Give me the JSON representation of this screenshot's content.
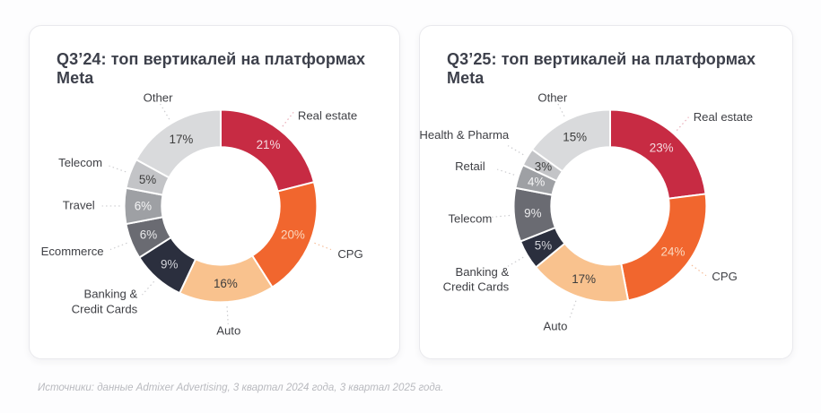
{
  "page": {
    "background": "#fdfdfe"
  },
  "footer": {
    "source_text": "Источники: данные Admixer Advertising, 3 квартал 2024 года, 3 квартал 2025 года."
  },
  "chart_data": [
    {
      "type": "pie",
      "subtype": "donut",
      "title": "Q3’24: топ вертикалей на платформах Meta",
      "legend_position": "none",
      "labels_position": "outside",
      "start_angle": "top",
      "direction": "clockwise",
      "slices": [
        {
          "label": "Real estate",
          "value": 21,
          "pct_label": "21%",
          "color": "#c72b43",
          "pct_color": "#f4d9de",
          "leader_color": "#e9abb6"
        },
        {
          "label": "CPG",
          "value": 20,
          "pct_label": "20%",
          "color": "#f1662e",
          "pct_color": "#fbd8bf",
          "leader_color": "#f6bd99"
        },
        {
          "label": "Auto",
          "value": 16,
          "pct_label": "16%",
          "color": "#f9c28e",
          "pct_color": "#3d3d3d",
          "leader_color": "#cccccf"
        },
        {
          "label": "Banking &\nCredit Cards",
          "value": 9,
          "pct_label": "9%",
          "color": "#2b2f3e",
          "pct_color": "#d2d3d9",
          "leader_color": "#cccccf"
        },
        {
          "label": "Ecommerce",
          "value": 6,
          "pct_label": "6%",
          "color": "#6a6b72",
          "pct_color": "#e9e9eb",
          "leader_color": "#cccccf"
        },
        {
          "label": "Travel",
          "value": 6,
          "pct_label": "6%",
          "color": "#9ea0a4",
          "pct_color": "#f4f4f5",
          "leader_color": "#cccccf"
        },
        {
          "label": "Telecom",
          "value": 5,
          "pct_label": "5%",
          "color": "#c3c4c7",
          "pct_color": "#3d3d3d",
          "leader_color": "#cccccf"
        },
        {
          "label": "Other",
          "value": 17,
          "pct_label": "17%",
          "color": "#d9dadc",
          "pct_color": "#3d3d3d",
          "leader_color": "#cccccf"
        }
      ]
    },
    {
      "type": "pie",
      "subtype": "donut",
      "title": "Q3’25: топ вертикалей на платформах Meta",
      "legend_position": "none",
      "labels_position": "outside",
      "start_angle": "top",
      "direction": "clockwise",
      "slices": [
        {
          "label": "Real estate",
          "value": 23,
          "pct_label": "23%",
          "color": "#c72b43",
          "pct_color": "#f4d9de",
          "leader_color": "#e9abb6"
        },
        {
          "label": "CPG",
          "value": 24,
          "pct_label": "24%",
          "color": "#f1662e",
          "pct_color": "#fbd8bf",
          "leader_color": "#f6bd99"
        },
        {
          "label": "Auto",
          "value": 17,
          "pct_label": "17%",
          "color": "#f9c28e",
          "pct_color": "#3d3d3d",
          "leader_color": "#cccccf"
        },
        {
          "label": "Banking &\nCredit Cards",
          "value": 5,
          "pct_label": "5%",
          "color": "#2b2f3e",
          "pct_color": "#d2d3d9",
          "leader_color": "#cccccf"
        },
        {
          "label": "Telecom",
          "value": 9,
          "pct_label": "9%",
          "color": "#6a6b72",
          "pct_color": "#e9e9eb",
          "leader_color": "#cccccf"
        },
        {
          "label": "Retail",
          "value": 4,
          "pct_label": "4%",
          "color": "#9ea0a4",
          "pct_color": "#f4f4f5",
          "leader_color": "#cccccf"
        },
        {
          "label": "Health & Pharma",
          "value": 3,
          "pct_label": "3%",
          "color": "#c3c4c7",
          "pct_color": "#3d3d3d",
          "leader_color": "#cccccf"
        },
        {
          "label": "Other",
          "value": 15,
          "pct_label": "15%",
          "color": "#d9dadc",
          "pct_color": "#3d3d3d",
          "leader_color": "#cccccf"
        }
      ]
    }
  ]
}
